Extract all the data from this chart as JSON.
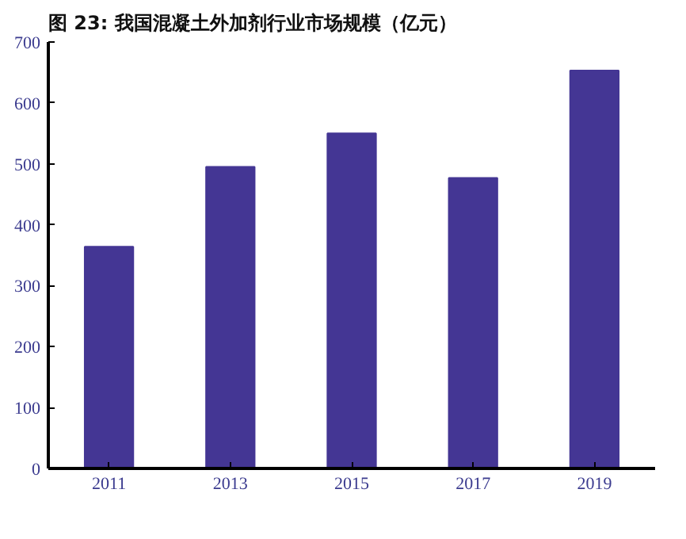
{
  "chart_data": {
    "type": "bar",
    "title": "图 23:  我国混凝土外加剂行业市场规模（亿元）",
    "categories": [
      "2011",
      "2013",
      "2015",
      "2017",
      "2019"
    ],
    "values": [
      364,
      495,
      550,
      477,
      653
    ],
    "color": "#443694",
    "ylim": [
      0,
      700
    ],
    "yticks": [
      0,
      100,
      200,
      300,
      400,
      500,
      600,
      700
    ],
    "grid": false
  }
}
